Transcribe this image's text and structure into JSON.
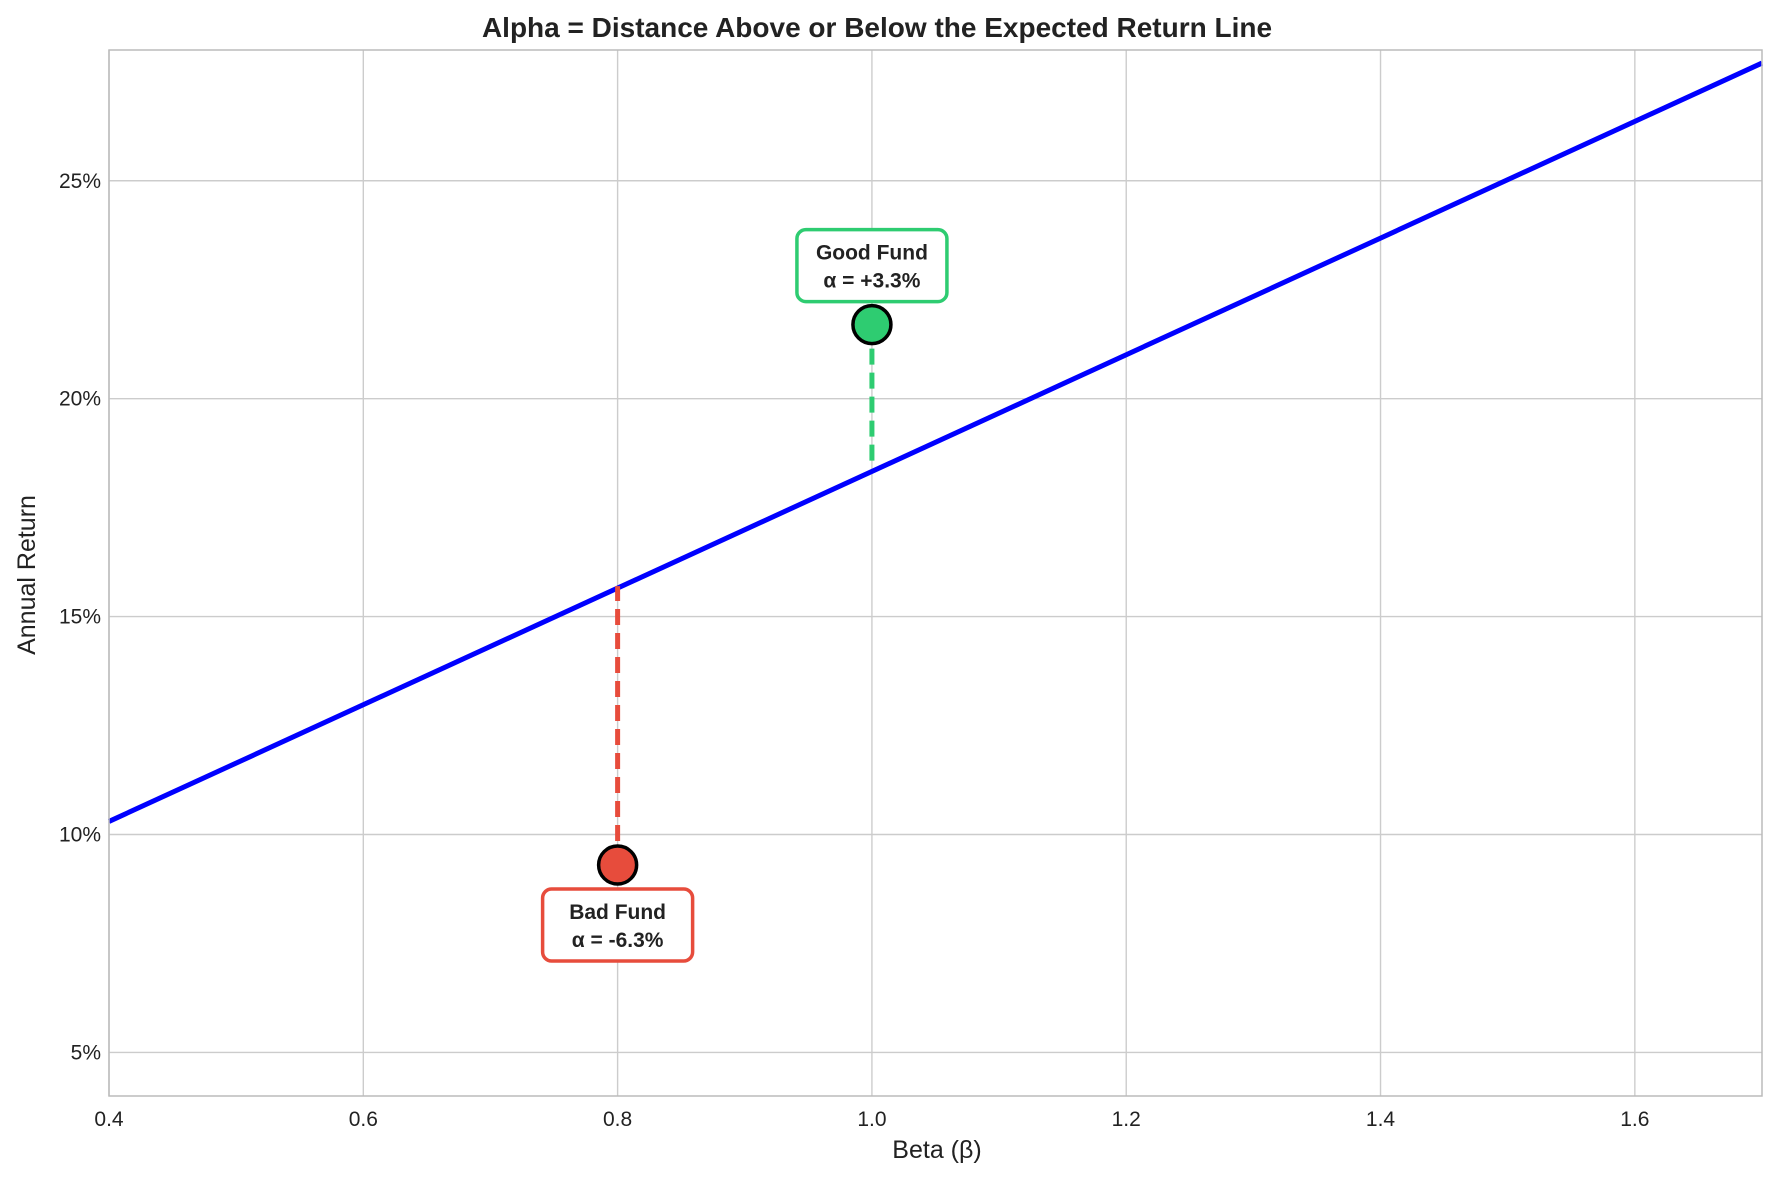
{
  "chart_data": {
    "type": "line",
    "title": "Alpha = Distance Above or Below the Expected Return Line",
    "xlabel": "Beta (β)",
    "ylabel": "Annual Return",
    "xlim": [
      0.4,
      1.7
    ],
    "ylim": [
      4.0,
      28.0
    ],
    "x_ticks": [
      0.4,
      0.6,
      0.8,
      1.0,
      1.2,
      1.4,
      1.6
    ],
    "x_tick_labels": [
      "0.4",
      "0.6",
      "0.8",
      "1.0",
      "1.2",
      "1.4",
      "1.6"
    ],
    "y_ticks": [
      5,
      10,
      15,
      20,
      25
    ],
    "y_tick_labels": [
      "5%",
      "10%",
      "15%",
      "20%",
      "25%"
    ],
    "grid": true,
    "series": [
      {
        "kind": "line",
        "x": [
          0.4,
          1.7
        ],
        "y": [
          10.3,
          27.7
        ],
        "color": "#0000ff"
      }
    ],
    "points": [
      {
        "x": 1.0,
        "y": 21.7,
        "expected": 18.4,
        "color": "#2ecc71",
        "label_line1": "Good Fund",
        "label_line2": "α = +3.3%",
        "label_position": "above"
      },
      {
        "x": 0.8,
        "y": 9.3,
        "expected": 15.7,
        "color": "#e74c3c",
        "label_line1": "Bad Fund",
        "label_line2": "α = -6.3%",
        "label_position": "below"
      }
    ],
    "colors": {
      "grid": "#cccccc",
      "axes": "#bbbbbb",
      "text": "#222222"
    }
  }
}
